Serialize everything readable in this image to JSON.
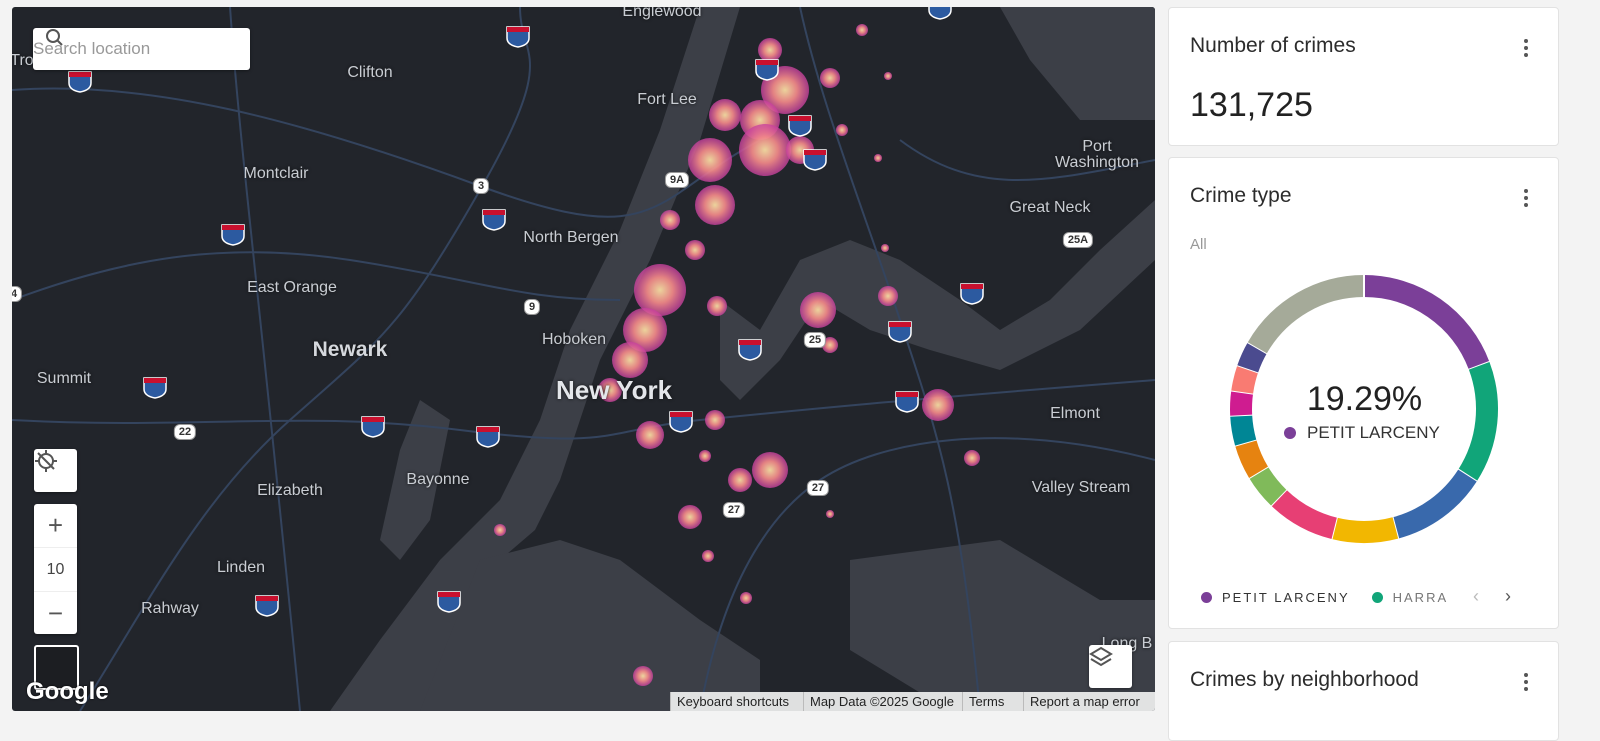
{
  "map": {
    "search_placeholder": "Search location",
    "places": [
      "Englewood",
      "Tro",
      "Clifton",
      "Fort Lee",
      "Port Washington",
      "Montclair",
      "Great Neck",
      "North Bergen",
      "East Orange",
      "Newark",
      "Hoboken",
      "New York",
      "Summit",
      "Elmont",
      "Bayonne",
      "Elizabeth",
      "Valley Stream",
      "Linden",
      "Rahway",
      "Long B"
    ],
    "route_shields": [
      "3",
      "9A",
      "9",
      "25",
      "22",
      "27",
      "27",
      "25A",
      "4"
    ],
    "zoom_level": "10",
    "logo": "Google",
    "attribution": [
      "Keyboard shortcuts",
      "Map Data ©2025 Google",
      "Terms",
      "Report a map error"
    ]
  },
  "widgets": [
    {
      "title": "Number of crimes",
      "value": "131,725"
    },
    {
      "title": "Crime type",
      "filter": "All",
      "center_value": "19.29%",
      "center_label": "PETIT LARCENY",
      "legend": [
        "PETIT LARCENY",
        "HARRA"
      ],
      "segments": [
        {
          "value": 19.29,
          "color": "#7b3f98"
        },
        {
          "value": 14.8,
          "color": "#11a579"
        },
        {
          "value": 11.8,
          "color": "#3969ac"
        },
        {
          "value": 8,
          "color": "#f2b701"
        },
        {
          "value": 8.3,
          "color": "#e73f74"
        },
        {
          "value": 4.2,
          "color": "#80ba5a"
        },
        {
          "value": 4.2,
          "color": "#e68310"
        },
        {
          "value": 3.6,
          "color": "#008695"
        },
        {
          "value": 3,
          "color": "#cf1c90"
        },
        {
          "value": 3.1,
          "color": "#f97b72"
        },
        {
          "value": 3,
          "color": "#4b4b8f"
        },
        {
          "value": 16.7,
          "color": "#a5aa99"
        }
      ]
    },
    {
      "title": "Crimes by neighborhood"
    }
  ]
}
